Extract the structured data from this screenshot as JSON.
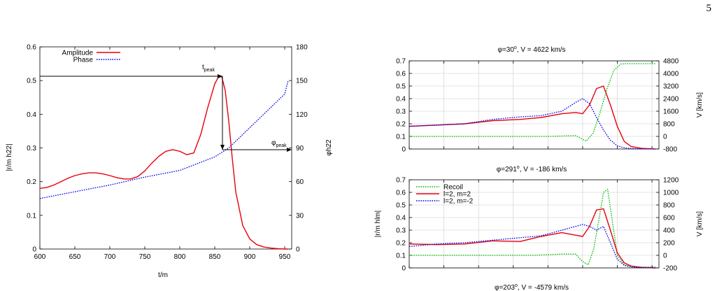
{
  "page_number": "5",
  "chart_data": [
    {
      "type": "line",
      "xlabel": "t/m",
      "ylabel": "|r/m h22|",
      "ylabel_right": "φh22",
      "xlim": [
        600,
        960
      ],
      "ylim": [
        0,
        0.6
      ],
      "ylim_right": [
        0,
        180
      ],
      "xticks": [
        600,
        650,
        700,
        750,
        800,
        850,
        900,
        950
      ],
      "yticks": [
        0,
        0.1,
        0.2,
        0.3,
        0.4,
        0.5,
        0.6
      ],
      "yticks_right": [
        0,
        30,
        60,
        90,
        120,
        150,
        180
      ],
      "legend_position": "top-left",
      "grid": false,
      "series": [
        {
          "name": "Amplitude",
          "color": "#e8000b",
          "style": "solid",
          "x": [
            600,
            610,
            620,
            630,
            640,
            650,
            660,
            670,
            680,
            690,
            700,
            710,
            720,
            730,
            740,
            750,
            760,
            770,
            780,
            790,
            800,
            810,
            820,
            830,
            840,
            850,
            855,
            860,
            865,
            870,
            875,
            880,
            890,
            900,
            910,
            920,
            930,
            940,
            950,
            955
          ],
          "y": [
            0.18,
            0.183,
            0.19,
            0.2,
            0.21,
            0.218,
            0.223,
            0.226,
            0.226,
            0.223,
            0.218,
            0.212,
            0.208,
            0.208,
            0.215,
            0.232,
            0.255,
            0.275,
            0.29,
            0.295,
            0.29,
            0.28,
            0.285,
            0.34,
            0.42,
            0.49,
            0.51,
            0.512,
            0.47,
            0.38,
            0.27,
            0.17,
            0.07,
            0.03,
            0.013,
            0.006,
            0.003,
            0.001,
            0.0,
            0.0
          ]
        },
        {
          "name": "Phase",
          "color": "#0000ee",
          "style": "dotted",
          "axis": "right",
          "x": [
            600,
            650,
            700,
            750,
            800,
            850,
            860,
            870,
            880,
            900,
            950,
            955
          ],
          "y": [
            45,
            51,
            57,
            64,
            70,
            82,
            86,
            90,
            96,
            108,
            138,
            150
          ]
        }
      ],
      "annotations": [
        {
          "text": "t",
          "sub": "peak"
        },
        {
          "text": "φ",
          "sub": "peak"
        }
      ]
    },
    {
      "type": "line",
      "title": "φ=30",
      "title_sup": "o",
      "title_rest": ", V =  4622 km/s",
      "ylabel_right": "V [km/s]",
      "xlim": [
        600,
        960
      ],
      "ylim": [
        0,
        0.7
      ],
      "ylim_right": [
        -800,
        4800
      ],
      "yticks": [
        0,
        0.1,
        0.2,
        0.3,
        0.4,
        0.5,
        0.6,
        0.7
      ],
      "yticks_right": [
        -800,
        0,
        800,
        1600,
        2400,
        3200,
        4000,
        4800
      ],
      "grid": true,
      "series": [
        {
          "name": "Recoil",
          "color": "#00bb00",
          "style": "dotted",
          "axis": "right",
          "x": [
            600,
            700,
            800,
            840,
            855,
            865,
            875,
            885,
            895,
            905,
            915,
            925,
            935,
            945,
            955
          ],
          "y": [
            0,
            0,
            0,
            50,
            -300,
            200,
            1500,
            3000,
            4200,
            4600,
            4620,
            4622,
            4622,
            4622,
            4622
          ]
        },
        {
          "name": "l=2, m=2",
          "color": "#e8000b",
          "style": "solid",
          "x": [
            600,
            640,
            680,
            720,
            760,
            790,
            820,
            840,
            850,
            860,
            870,
            880,
            890,
            900,
            910,
            920,
            935,
            955
          ],
          "y": [
            0.18,
            0.19,
            0.2,
            0.225,
            0.235,
            0.25,
            0.28,
            0.29,
            0.28,
            0.35,
            0.48,
            0.5,
            0.35,
            0.18,
            0.06,
            0.02,
            0.005,
            0.0
          ]
        },
        {
          "name": "l=2, m=-2",
          "color": "#0000ee",
          "style": "dotted",
          "x": [
            600,
            640,
            680,
            720,
            760,
            790,
            820,
            840,
            850,
            860,
            870,
            880,
            890,
            900,
            910,
            920,
            935,
            955
          ],
          "y": [
            0.18,
            0.19,
            0.2,
            0.235,
            0.255,
            0.265,
            0.3,
            0.37,
            0.4,
            0.36,
            0.25,
            0.15,
            0.07,
            0.025,
            0.01,
            0.004,
            0.001,
            0.0
          ]
        }
      ]
    },
    {
      "type": "line",
      "title": "φ=291",
      "title_sup": "o",
      "title_rest": ", V = -186 km/s",
      "ylabel": "|r/m hlm|",
      "ylabel_right": "V [km/s]",
      "xlim": [
        600,
        960
      ],
      "ylim": [
        0,
        0.7
      ],
      "ylim_right": [
        -200,
        1200
      ],
      "yticks": [
        0,
        0.1,
        0.2,
        0.3,
        0.4,
        0.5,
        0.6,
        0.7
      ],
      "yticks_right": [
        -200,
        0,
        200,
        400,
        600,
        800,
        1000,
        1200
      ],
      "grid": true,
      "legend_position": "top-left",
      "series": [
        {
          "name": "Recoil",
          "color": "#00bb00",
          "style": "dotted",
          "axis": "right",
          "x": [
            600,
            700,
            780,
            820,
            840,
            850,
            858,
            866,
            874,
            880,
            886,
            892,
            900,
            910,
            925,
            955
          ],
          "y": [
            0,
            0,
            0,
            20,
            20,
            -100,
            -150,
            100,
            600,
            1000,
            1050,
            600,
            0,
            -150,
            -186,
            -186
          ]
        },
        {
          "name": "l=2, m=2",
          "color": "#e8000b",
          "style": "solid",
          "x": [
            600,
            640,
            680,
            720,
            760,
            790,
            820,
            840,
            850,
            860,
            870,
            880,
            890,
            900,
            910,
            920,
            935,
            955
          ],
          "y": [
            0.19,
            0.185,
            0.19,
            0.215,
            0.21,
            0.25,
            0.28,
            0.26,
            0.25,
            0.33,
            0.46,
            0.47,
            0.3,
            0.12,
            0.04,
            0.015,
            0.004,
            0.0
          ]
        },
        {
          "name": "l=2, m=-2",
          "color": "#0000ee",
          "style": "dotted",
          "x": [
            600,
            640,
            680,
            720,
            760,
            790,
            820,
            840,
            850,
            860,
            870,
            880,
            890,
            900,
            910,
            920,
            935,
            955
          ],
          "y": [
            0.17,
            0.19,
            0.2,
            0.22,
            0.24,
            0.255,
            0.3,
            0.33,
            0.345,
            0.33,
            0.3,
            0.33,
            0.2,
            0.07,
            0.02,
            0.008,
            0.002,
            0.0
          ]
        }
      ]
    },
    {
      "type": "line",
      "title": "φ=203",
      "title_sup": "o",
      "title_rest": ", V = -4579 km/s"
    }
  ]
}
